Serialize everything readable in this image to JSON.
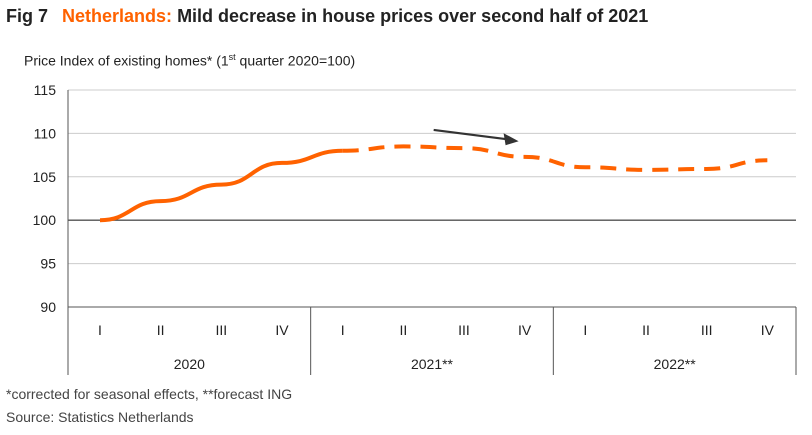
{
  "header": {
    "fig_label": "Fig 7",
    "country": "Netherlands:",
    "title_rest": "Mild decrease in house prices over second half of 2021"
  },
  "subtitle": {
    "before_sup": "Price Index of existing homes* (1",
    "sup": "st",
    "after_sup": " quarter 2020=100)"
  },
  "footnotes": {
    "note": "*corrected for seasonal effects, **forecast ING",
    "source": "Source: Statistics Netherlands"
  },
  "colors": {
    "series": "#ff6200",
    "arrow": "#333333",
    "axis": "#555555",
    "grid": "#cccccc"
  },
  "chart_data": {
    "type": "line",
    "title": "Mild decrease in house prices over second half of 2021",
    "ylabel": "Price Index of existing homes* (1st quarter 2020=100)",
    "ylim": [
      90,
      115
    ],
    "yticks": [
      90,
      95,
      100,
      105,
      110,
      115
    ],
    "grid": "horizontal",
    "quarters": [
      "I",
      "II",
      "III",
      "IV",
      "I",
      "II",
      "III",
      "IV",
      "I",
      "II",
      "III",
      "IV"
    ],
    "years": [
      "2020",
      "2021**",
      "2022**"
    ],
    "series": [
      {
        "style": "solid",
        "x_index": [
          0,
          1,
          2,
          3,
          4
        ],
        "values": [
          100,
          102.2,
          104.1,
          106.6,
          108.0
        ]
      },
      {
        "style": "dashed",
        "x_index": [
          4,
          5,
          6,
          7,
          8,
          9,
          10,
          11
        ],
        "values": [
          108.0,
          108.5,
          108.3,
          107.3,
          106.1,
          105.8,
          105.9,
          106.9
        ]
      }
    ],
    "annotation": "downward-trend-arrow"
  }
}
